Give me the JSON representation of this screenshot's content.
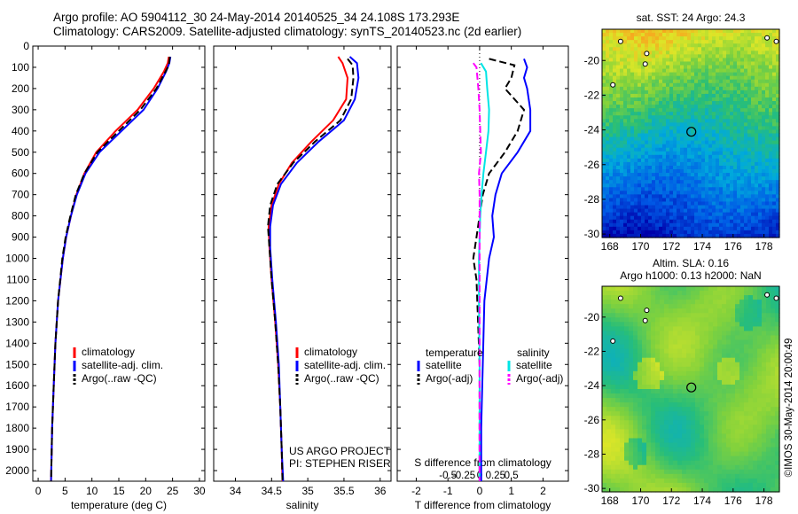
{
  "header": {
    "line1": "Argo profile: AO 5904112_30 24-May-2014 20140525_34 24.108S 173.293E",
    "line2": "Climatology: CARS2009. Satellite-adjusted climatology: synTS_20140523.nc (2d earlier)"
  },
  "colors": {
    "climatology": "#ff0000",
    "satellite": "#0000ff",
    "argo": "#000000",
    "s_satellite": "#00e5e5",
    "s_argo": "#ff00ff"
  },
  "depth_axis": {
    "ticks": [
      0,
      100,
      200,
      300,
      400,
      500,
      600,
      700,
      800,
      900,
      1000,
      1100,
      1200,
      1300,
      1400,
      1500,
      1600,
      1700,
      1800,
      1900,
      2000
    ],
    "ylim": [
      0,
      2050
    ]
  },
  "chart_data": [
    {
      "type": "line",
      "xlabel": "temperature (deg C)",
      "xlim": [
        -1,
        31
      ],
      "xticks": [
        0,
        5,
        10,
        15,
        20,
        25,
        30
      ],
      "legend": [
        "climatology",
        "satellite-adj. clim.",
        "Argo(..raw -QC)"
      ],
      "series": [
        {
          "name": "climatology",
          "depth": [
            50,
            80,
            120,
            200,
            300,
            400,
            500,
            600,
            700,
            800,
            900,
            1000,
            1200,
            1400,
            1600,
            1800,
            2050
          ],
          "values": [
            24.3,
            24.1,
            23.4,
            21.5,
            18.5,
            14.4,
            10.8,
            8.6,
            7.1,
            6.1,
            5.2,
            4.6,
            3.7,
            3.2,
            2.9,
            2.6,
            2.4
          ]
        },
        {
          "name": "satellite-adj. clim.",
          "depth": [
            50,
            80,
            120,
            200,
            300,
            400,
            500,
            600,
            700,
            800,
            900,
            1000,
            1200,
            1400,
            1600,
            1800,
            2050
          ],
          "values": [
            24.6,
            24.4,
            23.8,
            22.2,
            19.6,
            15.5,
            11.4,
            8.8,
            7.2,
            6.1,
            5.2,
            4.6,
            3.7,
            3.2,
            2.9,
            2.6,
            2.4
          ]
        },
        {
          "name": "Argo(..raw -QC)",
          "depth": [
            50,
            90,
            120,
            200,
            300,
            400,
            500,
            600,
            700,
            800,
            900,
            1000,
            1200,
            1400,
            1600,
            1800,
            2050
          ],
          "values": [
            24.5,
            24.3,
            23.7,
            22.0,
            19.0,
            15.0,
            11.0,
            8.6,
            7.0,
            6.0,
            5.1,
            4.5,
            3.7,
            3.2,
            2.9,
            2.6,
            2.4
          ]
        }
      ]
    },
    {
      "type": "line",
      "xlabel": "salinity",
      "xlim": [
        33.7,
        36.15
      ],
      "xticks": [
        34,
        34.5,
        35,
        35.5,
        36
      ],
      "legend": [
        "climatology",
        "satellite-adj. clim.",
        "Argo(..raw -QC)"
      ],
      "annotation": [
        "US ARGO PROJECT",
        "PI: STEPHEN RISER"
      ],
      "series": [
        {
          "name": "climatology",
          "depth": [
            50,
            80,
            150,
            250,
            350,
            450,
            550,
            650,
            750,
            850,
            950,
            1100,
            1300,
            1500,
            1700,
            1900,
            2050
          ],
          "values": [
            35.42,
            35.48,
            35.55,
            35.53,
            35.35,
            35.05,
            34.78,
            34.6,
            34.5,
            34.46,
            34.47,
            34.5,
            34.55,
            34.59,
            34.62,
            34.64,
            34.65
          ]
        },
        {
          "name": "satellite-adj. clim.",
          "depth": [
            50,
            80,
            150,
            250,
            350,
            450,
            550,
            650,
            750,
            850,
            950,
            1100,
            1300,
            1500,
            1700,
            1900,
            2050
          ],
          "values": [
            35.58,
            35.68,
            35.7,
            35.65,
            35.5,
            35.15,
            34.85,
            34.63,
            34.52,
            34.48,
            34.48,
            34.51,
            34.56,
            34.6,
            34.62,
            34.64,
            34.66
          ]
        },
        {
          "name": "Argo(..raw -QC)",
          "depth": [
            60,
            90,
            150,
            250,
            350,
            450,
            550,
            650,
            750,
            850,
            950,
            1100,
            1300,
            1500,
            1700,
            1900,
            2050
          ],
          "values": [
            35.55,
            35.62,
            35.63,
            35.6,
            35.45,
            35.1,
            34.8,
            34.58,
            34.48,
            34.45,
            34.47,
            34.5,
            34.55,
            34.59,
            34.62,
            34.64,
            34.65
          ]
        }
      ]
    },
    {
      "type": "line",
      "xlabel": "T difference from climatology",
      "xlabel2": "S difference from climatology",
      "xlim": [
        -2.6,
        2.8
      ],
      "xticks": [
        -2,
        -1,
        0,
        1,
        2
      ],
      "x2ticks": [
        -0.5,
        -0.25,
        0,
        0.25,
        0.5
      ],
      "legend_headers": [
        "temperature",
        "salinity"
      ],
      "legend": [
        "satellite",
        "Argo(-adj)",
        "satellite",
        "Argo(-adj)"
      ],
      "series": [
        {
          "name": "T satellite",
          "depth": [
            60,
            100,
            150,
            200,
            300,
            400,
            500,
            600,
            700,
            800,
            900,
            1000,
            1200,
            1500,
            1800,
            2050
          ],
          "values": [
            1.4,
            1.5,
            1.4,
            1.5,
            1.6,
            1.6,
            1.2,
            0.7,
            0.5,
            0.4,
            0.45,
            0.3,
            0.15,
            0.1,
            0.05,
            0.05
          ]
        },
        {
          "name": "T Argo(-adj)",
          "depth": [
            60,
            90,
            150,
            200,
            300,
            400,
            500,
            600,
            700,
            800,
            900,
            1000,
            1100,
            1500,
            1800,
            2050
          ],
          "values": [
            0.3,
            1.1,
            1.0,
            0.8,
            1.4,
            1.2,
            0.8,
            0.3,
            0.1,
            0.0,
            -0.1,
            -0.2,
            -0.1,
            0.0,
            0.0,
            0.0
          ]
        },
        {
          "name": "S satellite",
          "depth": [
            80,
            120,
            200,
            300,
            400,
            500,
            600,
            700,
            800,
            900,
            1000,
            1200,
            1500,
            1800,
            2050
          ],
          "values": [
            0.02,
            0.1,
            0.12,
            0.15,
            0.14,
            0.1,
            0.06,
            0.03,
            0.01,
            0.0,
            -0.01,
            -0.01,
            0.0,
            0.0,
            0.0
          ]
        },
        {
          "name": "S Argo(-adj)",
          "depth": [
            80,
            100,
            200,
            300,
            400,
            500,
            600,
            700,
            800,
            900,
            1000,
            1200,
            1500,
            1800,
            2050
          ],
          "values": [
            -0.1,
            -0.05,
            -0.02,
            0.0,
            0.01,
            0.02,
            -0.01,
            0.0,
            0.0,
            0.0,
            0.0,
            0.0,
            0.0,
            0.0,
            0.0
          ]
        }
      ]
    },
    {
      "type": "heatmap",
      "title": "sat. SST: 24 Argo: 24.3",
      "xticks": [
        168,
        170,
        172,
        174,
        176,
        178
      ],
      "yticks": [
        -20,
        -22,
        -24,
        -26,
        -28,
        -30
      ],
      "xlim": [
        167.5,
        179
      ],
      "ylim": [
        -30.2,
        -18.2
      ],
      "marker": {
        "lon": 173.293,
        "lat": -24.108
      }
    },
    {
      "type": "heatmap",
      "title": "Altim. SLA: 0.16",
      "title2": "Argo h1000: 0.13 h2000: NaN",
      "xticks": [
        168,
        170,
        172,
        174,
        176,
        178
      ],
      "yticks": [
        -20,
        -22,
        -24,
        -26,
        -28,
        -30
      ],
      "xlim": [
        167.5,
        179
      ],
      "ylim": [
        -30.2,
        -18.2
      ],
      "marker": {
        "lon": 173.293,
        "lat": -24.108
      }
    }
  ],
  "footer_vertical": "©IMOS 30-May-2014 20:00:49"
}
